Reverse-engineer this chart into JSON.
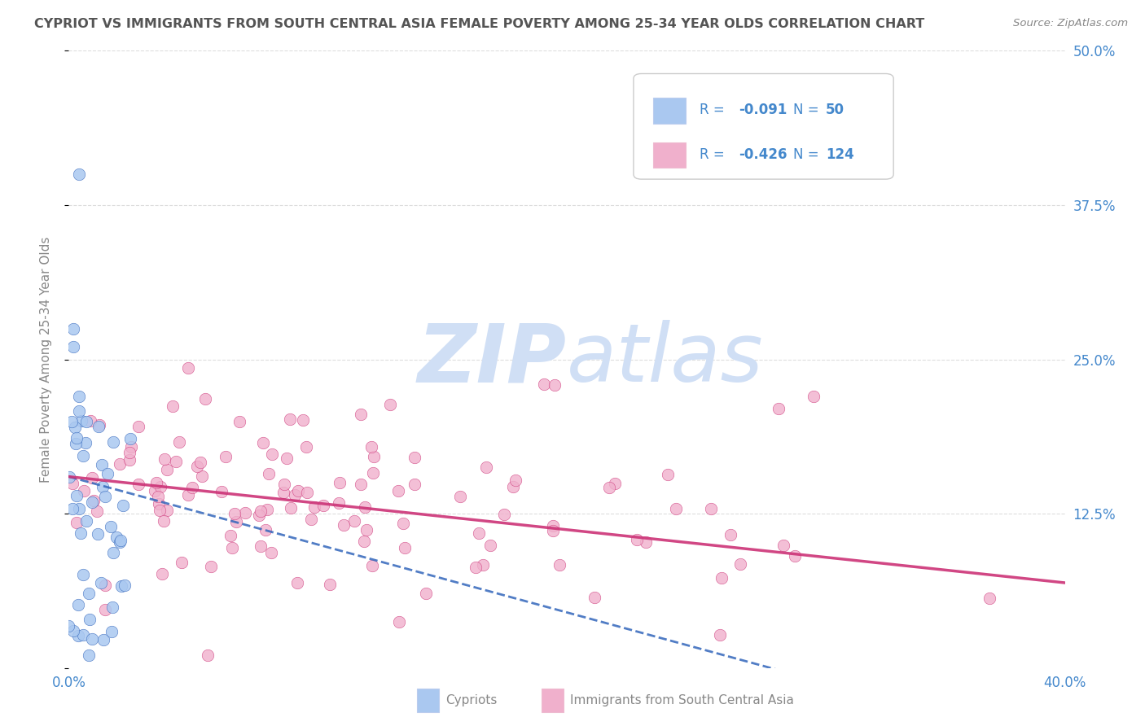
{
  "title": "CYPRIOT VS IMMIGRANTS FROM SOUTH CENTRAL ASIA FEMALE POVERTY AMONG 25-34 YEAR OLDS CORRELATION CHART",
  "source": "Source: ZipAtlas.com",
  "ylabel": "Female Poverty Among 25-34 Year Olds",
  "xlim": [
    0.0,
    0.4
  ],
  "ylim": [
    0.0,
    0.5
  ],
  "xtick_positions": [
    0.0,
    0.05,
    0.1,
    0.15,
    0.2,
    0.25,
    0.3,
    0.35,
    0.4
  ],
  "xticklabels": [
    "0.0%",
    "",
    "",
    "",
    "",
    "",
    "",
    "",
    "40.0%"
  ],
  "ytick_positions": [
    0.0,
    0.125,
    0.25,
    0.375,
    0.5
  ],
  "yticklabels": [
    "",
    "12.5%",
    "25.0%",
    "37.5%",
    "50.0%"
  ],
  "color_blue": "#aac8f0",
  "color_pink": "#f0b0cc",
  "trendline_blue_color": "#3366bb",
  "trendline_pink_color": "#cc3377",
  "watermark_zip": "ZIP",
  "watermark_atlas": "atlas",
  "watermark_color": "#d0dff5",
  "background_color": "#ffffff",
  "grid_color": "#dddddd",
  "title_color": "#555555",
  "axis_label_color": "#888888",
  "tick_label_color": "#4488cc",
  "legend_text_color": "#4488cc",
  "figsize": [
    14.06,
    8.92
  ],
  "dpi": 100,
  "legend_r1": "-0.091",
  "legend_n1": "50",
  "legend_r2": "-0.426",
  "legend_n2": "124"
}
